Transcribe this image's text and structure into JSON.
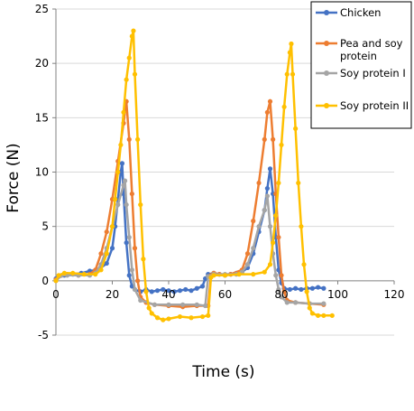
{
  "chart_data": {
    "type": "line",
    "xlabel": "Time (s)",
    "ylabel": "Force (N)",
    "xlim": [
      0,
      120
    ],
    "ylim": [
      -5,
      25
    ],
    "xticks": [
      "0",
      "20",
      "40",
      "60",
      "80",
      "100",
      "120"
    ],
    "yticks": [
      "-5",
      "0",
      "5",
      "10",
      "15",
      "20",
      "25"
    ],
    "xtick_values": [
      0,
      20,
      40,
      60,
      80,
      100,
      120
    ],
    "ytick_values": [
      -5,
      0,
      5,
      10,
      15,
      20,
      25
    ],
    "grid": "horizontal",
    "legend_position": "top-right",
    "series": [
      {
        "name": "Chicken",
        "color": "#4472C4",
        "points": [
          [
            0,
            0.2
          ],
          [
            3,
            0.5
          ],
          [
            6,
            0.6
          ],
          [
            9,
            0.7
          ],
          [
            12,
            0.9
          ],
          [
            15,
            1.0
          ],
          [
            18,
            1.6
          ],
          [
            20,
            3.0
          ],
          [
            21,
            5.0
          ],
          [
            22,
            7.5
          ],
          [
            23,
            10.0
          ],
          [
            23.5,
            10.8
          ],
          [
            24,
            8.0
          ],
          [
            25,
            3.5
          ],
          [
            26,
            0.5
          ],
          [
            27,
            -0.5
          ],
          [
            28,
            -0.8
          ],
          [
            30,
            -1.0
          ],
          [
            32,
            -0.8
          ],
          [
            34,
            -1.0
          ],
          [
            36,
            -0.9
          ],
          [
            38,
            -0.8
          ],
          [
            40,
            -0.9
          ],
          [
            42,
            -1.0
          ],
          [
            44,
            -0.9
          ],
          [
            46,
            -0.8
          ],
          [
            48,
            -0.9
          ],
          [
            50,
            -0.7
          ],
          [
            52,
            -0.5
          ],
          [
            53,
            0.2
          ],
          [
            54,
            0.6
          ],
          [
            56,
            0.7
          ],
          [
            58,
            0.6
          ],
          [
            60,
            0.5
          ],
          [
            62,
            0.6
          ],
          [
            64,
            0.7
          ],
          [
            66,
            0.8
          ],
          [
            68,
            1.2
          ],
          [
            70,
            2.5
          ],
          [
            72,
            4.5
          ],
          [
            74,
            6.5
          ],
          [
            75,
            8.5
          ],
          [
            76,
            10.3
          ],
          [
            77,
            8.0
          ],
          [
            78,
            4.0
          ],
          [
            79,
            1.0
          ],
          [
            80,
            -0.2
          ],
          [
            81,
            -0.7
          ],
          [
            83,
            -0.8
          ],
          [
            85,
            -0.7
          ],
          [
            87,
            -0.8
          ],
          [
            89,
            -0.7
          ],
          [
            91,
            -0.7
          ],
          [
            93,
            -0.6
          ],
          [
            95,
            -0.7
          ]
        ]
      },
      {
        "name": "Pea and soy protein",
        "color": "#ED7D31",
        "points": [
          [
            0,
            0.1
          ],
          [
            2,
            0.5
          ],
          [
            4,
            0.6
          ],
          [
            8,
            0.5
          ],
          [
            12,
            0.6
          ],
          [
            14,
            1.0
          ],
          [
            16,
            2.5
          ],
          [
            18,
            4.5
          ],
          [
            20,
            7.5
          ],
          [
            22,
            11.0
          ],
          [
            24,
            14.5
          ],
          [
            25,
            16.5
          ],
          [
            26,
            13.0
          ],
          [
            27,
            8.0
          ],
          [
            28,
            3.0
          ],
          [
            29,
            0.0
          ],
          [
            30,
            -1.5
          ],
          [
            32,
            -2.0
          ],
          [
            35,
            -2.2
          ],
          [
            40,
            -2.3
          ],
          [
            45,
            -2.4
          ],
          [
            50,
            -2.3
          ],
          [
            54,
            -2.3
          ],
          [
            55,
            0.5
          ],
          [
            56,
            0.7
          ],
          [
            58,
            0.6
          ],
          [
            62,
            0.6
          ],
          [
            66,
            1.0
          ],
          [
            68,
            2.5
          ],
          [
            70,
            5.5
          ],
          [
            72,
            9.0
          ],
          [
            74,
            13.0
          ],
          [
            75,
            15.5
          ],
          [
            76,
            16.5
          ],
          [
            77,
            13.0
          ],
          [
            78,
            8.0
          ],
          [
            79,
            4.0
          ],
          [
            80,
            0.5
          ],
          [
            81,
            -1.0
          ],
          [
            82,
            -1.8
          ],
          [
            85,
            -2.0
          ],
          [
            90,
            -2.1
          ],
          [
            95,
            -2.2
          ]
        ]
      },
      {
        "name": "Soy protein I",
        "color": "#A5A5A5",
        "points": [
          [
            0,
            0.0
          ],
          [
            2,
            0.5
          ],
          [
            4,
            0.5
          ],
          [
            8,
            0.5
          ],
          [
            12,
            0.5
          ],
          [
            14,
            0.7
          ],
          [
            16,
            1.5
          ],
          [
            18,
            3.0
          ],
          [
            20,
            5.0
          ],
          [
            22,
            7.0
          ],
          [
            24,
            8.8
          ],
          [
            24.5,
            9.2
          ],
          [
            25,
            7.0
          ],
          [
            26,
            4.0
          ],
          [
            27,
            1.0
          ],
          [
            28,
            -0.8
          ],
          [
            30,
            -1.8
          ],
          [
            35,
            -2.2
          ],
          [
            40,
            -2.2
          ],
          [
            45,
            -2.2
          ],
          [
            50,
            -2.2
          ],
          [
            53,
            -2.3
          ],
          [
            54,
            0.4
          ],
          [
            56,
            0.6
          ],
          [
            60,
            0.6
          ],
          [
            64,
            0.6
          ],
          [
            66,
            0.8
          ],
          [
            68,
            1.5
          ],
          [
            70,
            3.0
          ],
          [
            72,
            5.0
          ],
          [
            74,
            6.5
          ],
          [
            75,
            7.8
          ],
          [
            76,
            5.0
          ],
          [
            77,
            2.5
          ],
          [
            78,
            0.5
          ],
          [
            79,
            -0.8
          ],
          [
            80,
            -1.5
          ],
          [
            82,
            -2.0
          ],
          [
            85,
            -2.0
          ],
          [
            90,
            -2.1
          ],
          [
            95,
            -2.1
          ]
        ]
      },
      {
        "name": "Soy protein II",
        "color": "#FFC000",
        "points": [
          [
            0,
            0.0
          ],
          [
            1,
            0.5
          ],
          [
            3,
            0.7
          ],
          [
            6,
            0.7
          ],
          [
            10,
            0.6
          ],
          [
            14,
            0.6
          ],
          [
            16,
            1.0
          ],
          [
            18,
            2.5
          ],
          [
            20,
            5.0
          ],
          [
            21,
            7.5
          ],
          [
            22,
            10.0
          ],
          [
            23,
            12.5
          ],
          [
            24,
            15.5
          ],
          [
            25,
            18.5
          ],
          [
            26,
            20.5
          ],
          [
            27,
            22.5
          ],
          [
            27.5,
            23.0
          ],
          [
            28,
            19.0
          ],
          [
            29,
            13.0
          ],
          [
            30,
            7.0
          ],
          [
            31,
            2.0
          ],
          [
            32,
            -1.0
          ],
          [
            33,
            -2.5
          ],
          [
            34,
            -3.0
          ],
          [
            36,
            -3.4
          ],
          [
            38,
            -3.6
          ],
          [
            40,
            -3.5
          ],
          [
            44,
            -3.3
          ],
          [
            48,
            -3.4
          ],
          [
            52,
            -3.3
          ],
          [
            54,
            -3.2
          ],
          [
            55,
            0.3
          ],
          [
            56,
            0.5
          ],
          [
            60,
            0.5
          ],
          [
            65,
            0.6
          ],
          [
            70,
            0.6
          ],
          [
            74,
            0.8
          ],
          [
            76,
            1.5
          ],
          [
            77,
            3.5
          ],
          [
            78,
            6.0
          ],
          [
            79,
            9.0
          ],
          [
            80,
            12.5
          ],
          [
            81,
            16.0
          ],
          [
            82,
            19.0
          ],
          [
            83,
            21.0
          ],
          [
            83.5,
            21.8
          ],
          [
            84,
            19.0
          ],
          [
            85,
            14.0
          ],
          [
            86,
            9.0
          ],
          [
            87,
            5.0
          ],
          [
            88,
            1.5
          ],
          [
            89,
            -1.0
          ],
          [
            90,
            -2.5
          ],
          [
            91,
            -3.0
          ],
          [
            93,
            -3.2
          ],
          [
            95,
            -3.2
          ],
          [
            98,
            -3.2
          ]
        ]
      }
    ]
  }
}
